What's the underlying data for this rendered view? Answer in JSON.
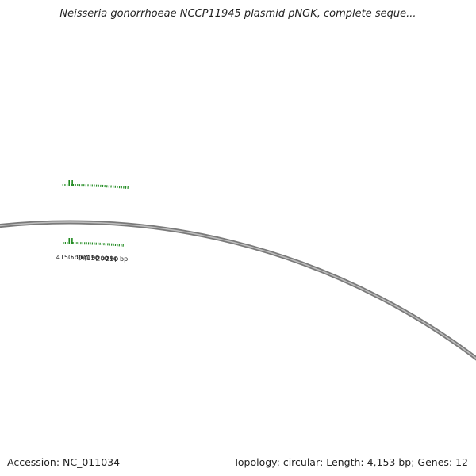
{
  "title": "Neisseria gonorrhoeae NCCP11945 plasmid pNGK, complete seque...",
  "accession_text": "Accession: NC_011034",
  "summary_text": "Topology: circular; Length: 4,153 bp; Genes: 12",
  "plasmid": {
    "name": "pNGK",
    "organism": "Neisseria gonorrhoeae NCCP11945",
    "accession": "NC_011034",
    "topology": "circular",
    "length_bp": 4153,
    "genes": 12
  },
  "ruler": {
    "tick_interval_bp": 10,
    "visible_start_bp": 4120,
    "visible_end_bp": 4153,
    "visible_wrap_end_bp": 285,
    "labels": [
      "4150 bp",
      "50 bp",
      "100 bp",
      "150 bp",
      "200 bp",
      "250 bp"
    ],
    "label_positions_bp": [
      4150,
      50,
      100,
      150,
      200,
      250
    ]
  },
  "colors": {
    "backbone": "#7a7a7a",
    "backbone_highlight": "#bdbdbd",
    "tick": "#1f8a1f",
    "text": "#222222"
  }
}
